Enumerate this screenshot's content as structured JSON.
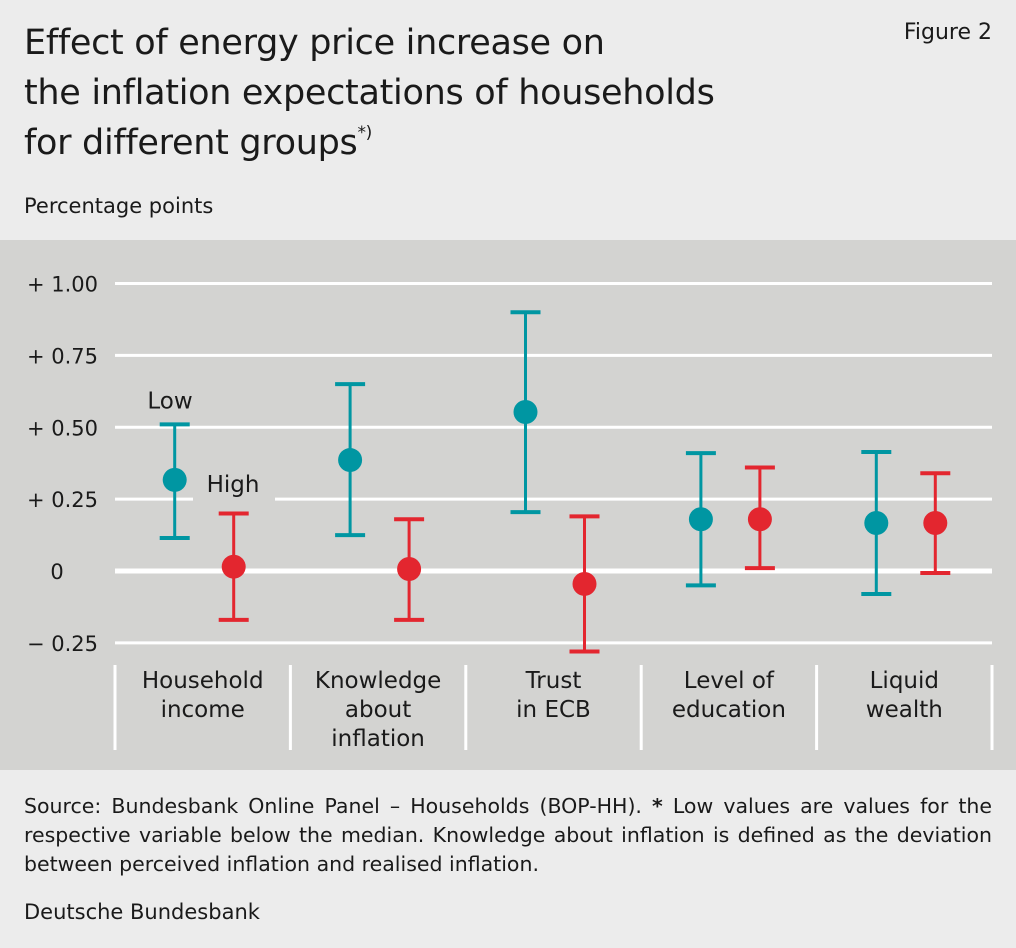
{
  "header": {
    "title_lines": [
      "Effect of energy price increase on",
      "the inflation expectations of households",
      "for different groups"
    ],
    "title_footnote_mark": "*)",
    "figure_label": "Figure 2",
    "unit_label": "Percentage points"
  },
  "footer": {
    "source_prefix": "Source: Bundesbank Online Panel – Households (BOP-HH). ",
    "source_star": "*",
    "source_rest": " Low values are values for the respective variable below the median. Knowledge about inflation is defined as the deviation between perceived inflation and realised inflation.",
    "organization": "Deutsche Bundesbank"
  },
  "chart_data": {
    "type": "scatter",
    "subtype": "point-with-error-bars",
    "ylabel": "Percentage points",
    "ylim": [
      -0.25,
      1.0
    ],
    "yticks": [
      1.0,
      0.75,
      0.5,
      0.25,
      0,
      -0.25
    ],
    "ytick_labels": [
      "+ 1.00",
      "+ 0.75",
      "+ 0.50",
      "+ 0.25",
      "0",
      "− 0.25"
    ],
    "grid": true,
    "categories": [
      [
        "Household",
        "income"
      ],
      [
        "Knowledge",
        "about",
        "inflation"
      ],
      [
        "Trust",
        "in ECB"
      ],
      [
        "Level of",
        "education"
      ],
      [
        "Liquid",
        "wealth"
      ]
    ],
    "series": [
      {
        "name": "Low",
        "color": "#0096a2",
        "values": [
          0.317,
          0.386,
          0.553,
          0.18,
          0.167
        ],
        "lower": [
          0.115,
          0.125,
          0.205,
          -0.05,
          -0.08
        ],
        "upper": [
          0.51,
          0.65,
          0.9,
          0.41,
          0.414
        ]
      },
      {
        "name": "High",
        "color": "#e3262f",
        "values": [
          0.015,
          0.007,
          -0.045,
          0.18,
          0.167
        ],
        "lower": [
          -0.17,
          -0.17,
          -0.28,
          0.01,
          -0.007
        ],
        "upper": [
          0.2,
          0.18,
          0.19,
          0.36,
          0.34
        ]
      }
    ]
  }
}
